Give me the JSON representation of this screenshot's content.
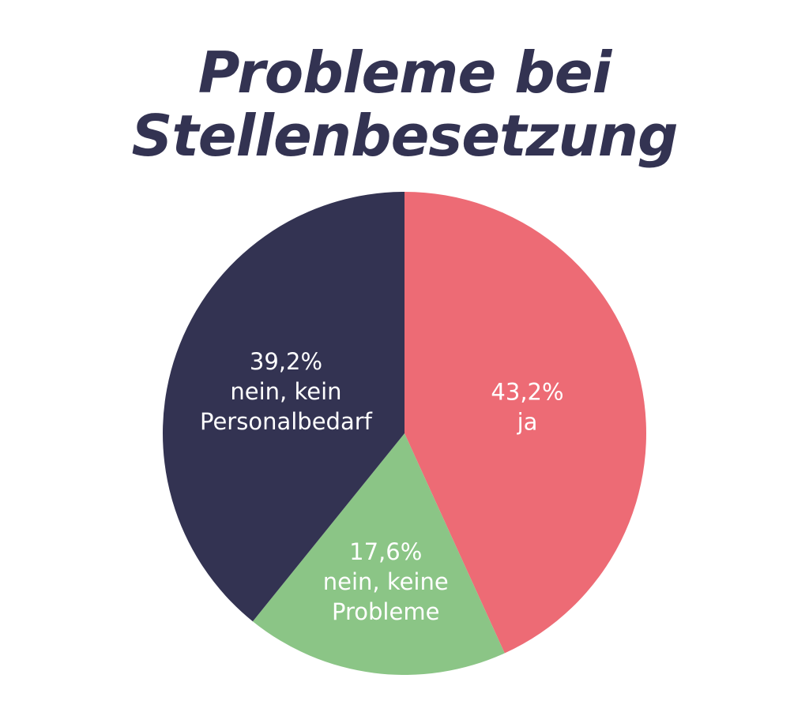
{
  "chart_data": {
    "type": "pie",
    "title_lines": [
      "Probleme bei",
      "Stellenbesetzung"
    ],
    "slices": [
      {
        "value": 43.2,
        "label_pct": "43,2%",
        "label_lines": [
          "ja"
        ],
        "color": "#ED6B75"
      },
      {
        "value": 17.6,
        "label_pct": "17,6%",
        "label_lines": [
          "nein, keine",
          "Probleme"
        ],
        "color": "#8BC586"
      },
      {
        "value": 39.2,
        "label_pct": "39,2%",
        "label_lines": [
          "nein, kein",
          "Personalbedarf"
        ],
        "color": "#333352"
      }
    ]
  }
}
